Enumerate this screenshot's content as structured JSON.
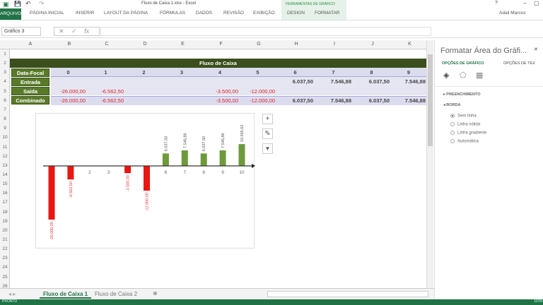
{
  "window": {
    "title": "Fluxo de Caixa 1.xlsx - Excel",
    "user": "Adail Marcos",
    "context_group": "FERRAMENTAS DE GRÁFICO"
  },
  "ribbon": {
    "tabs": [
      "ARQUIVO",
      "PÁGINA INICIAL",
      "INSERIR",
      "LAYOUT DA PÁGINA",
      "FÓRMULAS",
      "DADOS",
      "REVISÃO",
      "EXIBIÇÃO",
      "DESIGN",
      "FORMATAR"
    ]
  },
  "formula_bar": {
    "name_box": "Gráfico 3",
    "fx": "fx",
    "value": ""
  },
  "columns": [
    "A",
    "B",
    "C",
    "D",
    "E",
    "F",
    "G",
    "H",
    "I",
    "J",
    "K"
  ],
  "rows": [
    "1",
    "2",
    "3",
    "4",
    "5",
    "6",
    "7",
    "8",
    "9",
    "10",
    "11",
    "12",
    "13",
    "14",
    "15",
    "16",
    "17",
    "18",
    "19",
    "20",
    "21",
    "22",
    "23",
    "24",
    "25",
    "26"
  ],
  "table": {
    "title": "Fluxo de Caixa",
    "header_label": "Data-Focal",
    "periods": [
      "0",
      "1",
      "2",
      "3",
      "4",
      "5",
      "6",
      "7",
      "8",
      "9"
    ],
    "entrada_label": "Entrada",
    "entrada": [
      "",
      "",
      "",
      "",
      "",
      "",
      "6.037,50",
      "7.546,88",
      "6.037,50",
      "7.546,88"
    ],
    "saida_label": "Saída",
    "saida": [
      "-26.000,00",
      "-6.562,50",
      "",
      "",
      "-3.500,00",
      "-12.000,00",
      "",
      "",
      "",
      ""
    ],
    "combinado_label": "Combinado",
    "combinado": [
      "-26.000,00",
      "-6.562,50",
      "",
      "",
      "-3.500,00",
      "-12.000,00",
      "6.037,50",
      "7.546,88",
      "6.037,50",
      "7.546,88"
    ]
  },
  "chart_data": {
    "type": "bar",
    "categories": [
      "0",
      "1",
      "2",
      "3",
      "4",
      "5",
      "6",
      "7",
      "8",
      "9",
      "10"
    ],
    "visible_tick_labels": [
      "2",
      "3",
      "6",
      "7",
      "8",
      "9",
      "10"
    ],
    "values": [
      -26000,
      -6562.5,
      0,
      0,
      -3500,
      -12000,
      6037.5,
      7546.88,
      6037.5,
      7546.88,
      10565.63
    ],
    "data_labels": [
      "-26.000,00",
      "-6.562,50",
      "",
      "",
      "-3.500,00",
      "-12.000,00",
      "6.037,50",
      "7.546,88",
      "6.037,50",
      "7.546,88",
      "10.565,63"
    ],
    "colors": {
      "negative": "#e8170f",
      "positive": "#6e9a3c"
    },
    "grid": false,
    "legend": "none"
  },
  "chart_buttons": [
    "+",
    "✎",
    "▼"
  ],
  "pane": {
    "title": "Formatar Área do Gráfi...",
    "tab1": "OPÇÕES DE GRÁFICO",
    "tab2": "OPÇÕES DE TEX",
    "section1": "PREENCHIMENTO",
    "section2": "BORDA",
    "options": [
      "Sem linha",
      "Linha sólida",
      "Linha gradiente",
      "Automática"
    ],
    "selected": 0
  },
  "sheets": [
    "Fluxo de Caixa 1",
    "Fluxo de Caixa 2"
  ],
  "status": {
    "mode": "PRONTO",
    "zoom": "115%"
  }
}
